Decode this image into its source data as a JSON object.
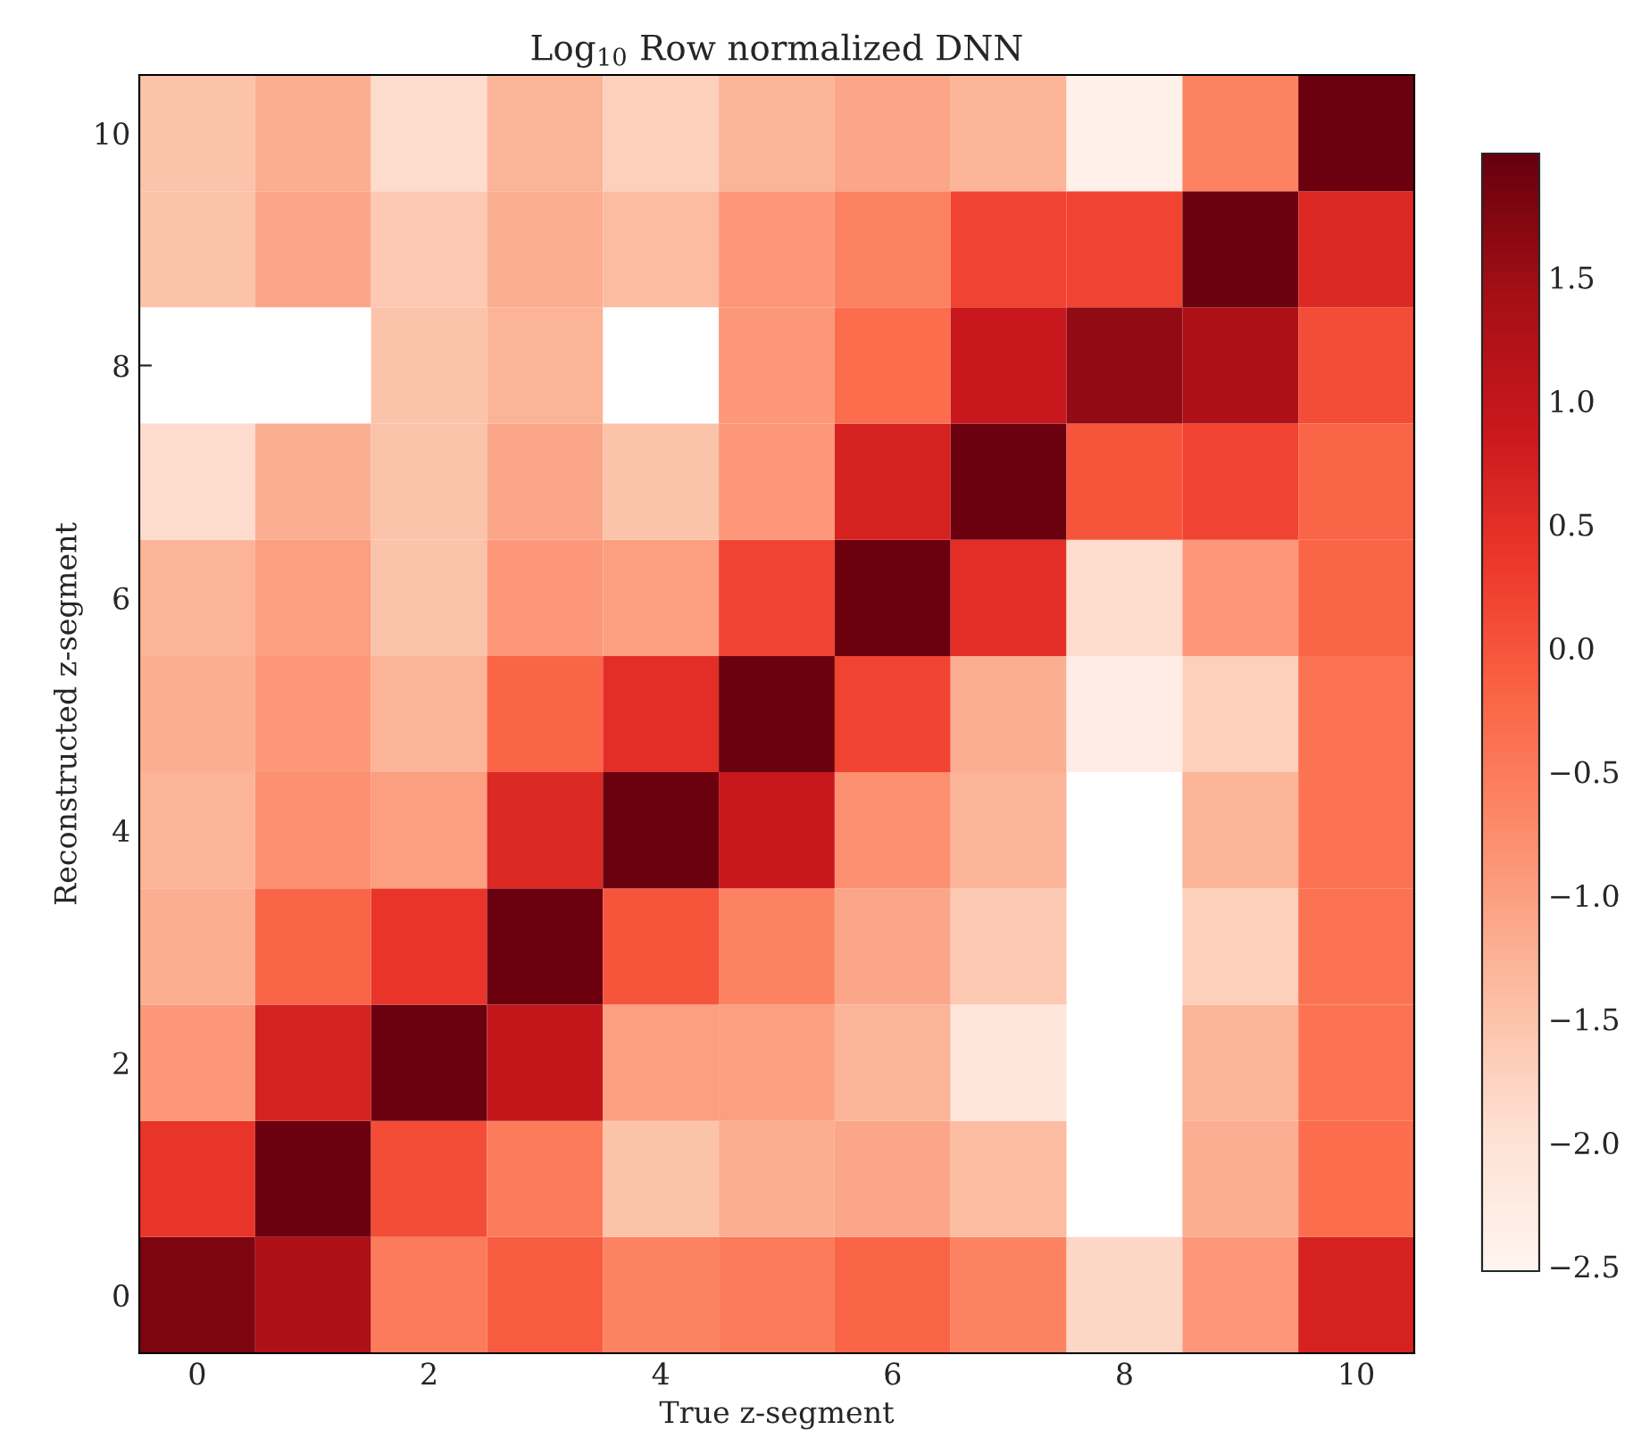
{
  "chart_data": {
    "type": "heatmap",
    "title": "Log$_{10}$ Row normalized DNN",
    "xlabel": "True z-segment",
    "ylabel": "Reconstructed z-segment",
    "categories": [
      "0",
      null,
      "2",
      null,
      "4",
      null,
      "6",
      null,
      "8",
      null,
      "10"
    ],
    "y_categories": [
      "10",
      null,
      "8",
      null,
      "6",
      null,
      "4",
      null,
      "2",
      null,
      "0"
    ],
    "cells": [
      [
        -1.5,
        -1.2,
        -1.9,
        -1.3,
        -1.7,
        -1.3,
        -1.1,
        -1.3,
        -2.4,
        -0.6,
        1.95
      ],
      [
        -1.5,
        -1.1,
        -1.6,
        -1.2,
        -1.4,
        -0.9,
        -0.6,
        0.2,
        0.2,
        1.95,
        0.6
      ],
      [
        null,
        null,
        -1.5,
        -1.3,
        null,
        -0.9,
        -0.3,
        0.9,
        1.6,
        1.3,
        0.1
      ],
      [
        -1.9,
        -1.2,
        -1.5,
        -1.1,
        -1.5,
        -0.9,
        0.7,
        1.95,
        0.0,
        0.2,
        -0.2
      ],
      [
        -1.3,
        -1.0,
        -1.5,
        -0.9,
        -1.0,
        0.2,
        1.95,
        0.5,
        -1.9,
        -0.9,
        -0.2
      ],
      [
        -1.2,
        -0.9,
        -1.3,
        -0.2,
        0.5,
        1.95,
        0.2,
        -1.2,
        -2.3,
        -1.7,
        -0.4
      ],
      [
        -1.3,
        -0.8,
        -1.0,
        0.6,
        1.95,
        0.9,
        -0.8,
        -1.3,
        null,
        -1.3,
        -0.4
      ],
      [
        -1.2,
        -0.2,
        0.4,
        1.95,
        0.0,
        -0.6,
        -1.1,
        -1.6,
        null,
        -1.7,
        -0.4
      ],
      [
        -0.9,
        0.7,
        1.95,
        1.0,
        -1.0,
        -1.0,
        -1.3,
        -2.1,
        null,
        -1.3,
        -0.4
      ],
      [
        0.4,
        1.95,
        0.1,
        -0.5,
        -1.5,
        -1.2,
        -1.1,
        -1.4,
        null,
        -1.2,
        -0.3
      ],
      [
        1.8,
        1.3,
        -0.5,
        -0.1,
        -0.6,
        -0.5,
        -0.2,
        -0.6,
        -1.8,
        -0.9,
        0.7
      ]
    ],
    "clim": [
      -2.52,
      2.0
    ],
    "cticks": [
      {
        "value": -2.5,
        "label": "−2.5"
      },
      {
        "value": -2.0,
        "label": "−2.0"
      },
      {
        "value": -1.5,
        "label": "−1.5"
      },
      {
        "value": -1.0,
        "label": "−1.0"
      },
      {
        "value": -0.5,
        "label": "−0.5"
      },
      {
        "value": 0.0,
        "label": "0.0"
      },
      {
        "value": 0.5,
        "label": "0.5"
      },
      {
        "value": 1.0,
        "label": "1.0"
      },
      {
        "value": 1.5,
        "label": "1.5"
      }
    ]
  }
}
